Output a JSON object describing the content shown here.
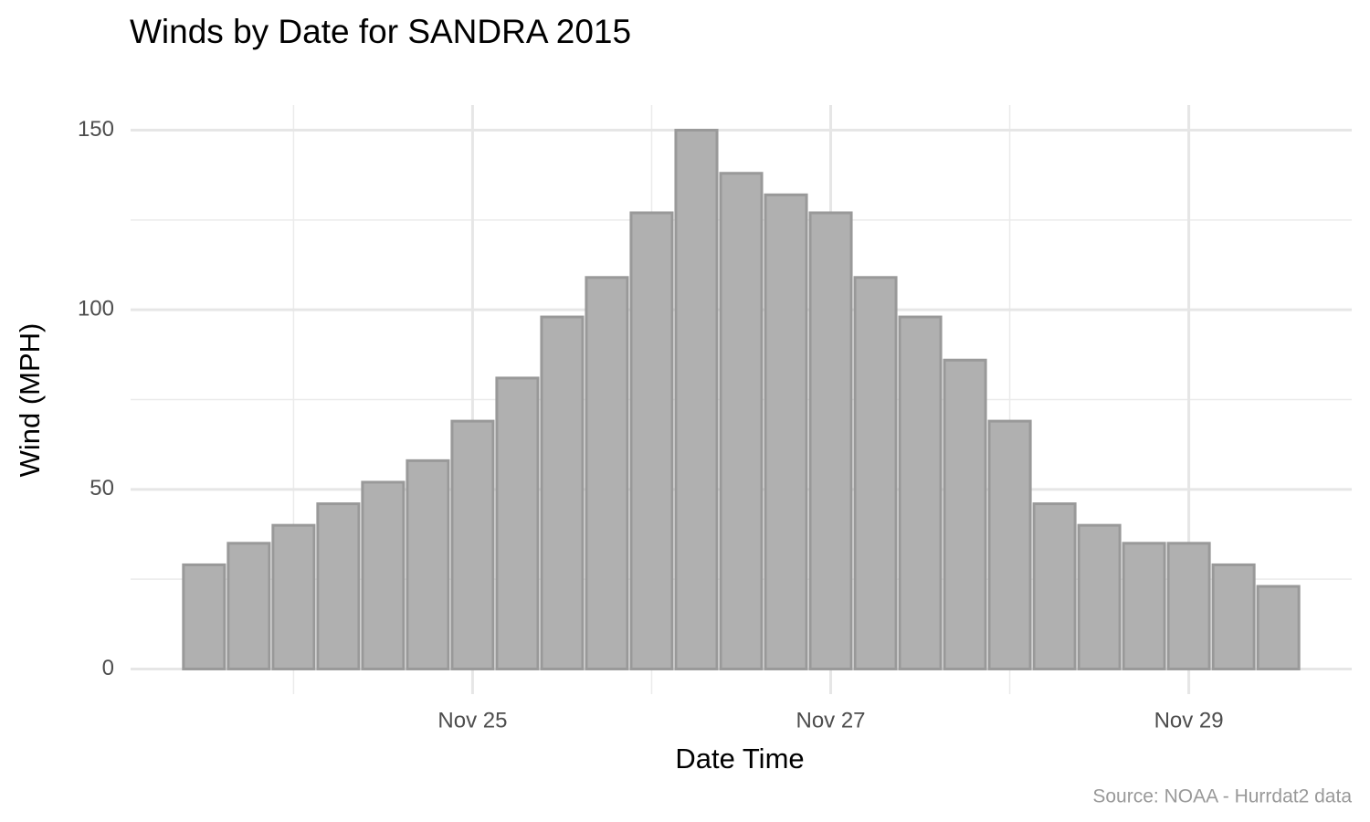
{
  "chart_data": {
    "type": "bar",
    "title": "Winds by Date for SANDRA 2015",
    "x_label": "Date Time",
    "y_label": "Wind (MPH)",
    "caption": "Source: NOAA - Hurrdat2 data",
    "x": [
      23.5,
      23.75,
      24,
      24.25,
      24.5,
      24.75,
      25,
      25.25,
      25.5,
      25.75,
      26,
      26.25,
      26.5,
      26.75,
      27,
      27.25,
      27.5,
      27.75,
      28,
      28.25,
      28.5,
      28.75,
      29,
      29.25,
      29.5
    ],
    "values": [
      29,
      35,
      40,
      46,
      52,
      58,
      69,
      81,
      98,
      109,
      127,
      150,
      138,
      132,
      127,
      109,
      98,
      86,
      69,
      46,
      40,
      35,
      35,
      29,
      23
    ],
    "color": "#b0b0b0",
    "edge_color": "#999999",
    "xlim": [
      23.09,
      29.91
    ],
    "xticks": [
      {
        "value": 25,
        "label": "Nov 25"
      },
      {
        "value": 27,
        "label": "Nov 27"
      },
      {
        "value": 29,
        "label": "Nov 29"
      }
    ],
    "xminor": [
      24,
      26,
      28
    ],
    "ylim": [
      -7,
      157
    ],
    "yticks": [
      0,
      50,
      100,
      150
    ],
    "yminor": [
      25,
      75,
      125
    ],
    "grid": true
  }
}
